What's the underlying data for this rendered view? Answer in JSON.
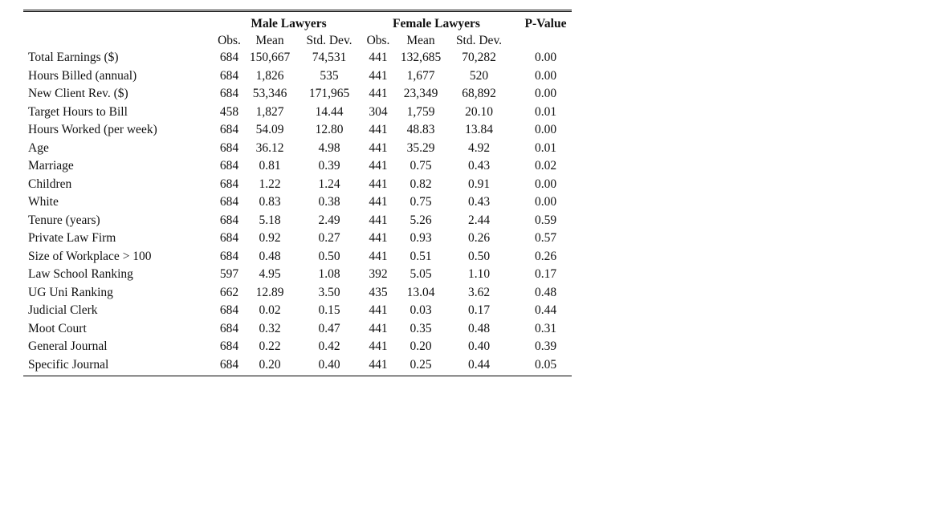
{
  "table": {
    "group_headers": {
      "male": "Male Lawyers",
      "female": "Female Lawyers",
      "pvalue": "P-Value"
    },
    "sub_headers": {
      "obs": "Obs.",
      "mean": "Mean",
      "sd": "Std. Dev."
    },
    "rows": [
      {
        "label": "Total Earnings ($)",
        "m_obs": "684",
        "m_mean": "150,667",
        "m_sd": "74,531",
        "f_obs": "441",
        "f_mean": "132,685",
        "f_sd": "70,282",
        "p": "0.00"
      },
      {
        "label": "Hours Billed (annual)",
        "m_obs": "684",
        "m_mean": "1,826",
        "m_sd": "535",
        "f_obs": "441",
        "f_mean": "1,677",
        "f_sd": "520",
        "p": "0.00"
      },
      {
        "label": "New Client Rev. ($)",
        "m_obs": "684",
        "m_mean": "53,346",
        "m_sd": "171,965",
        "f_obs": "441",
        "f_mean": "23,349",
        "f_sd": "68,892",
        "p": "0.00"
      },
      {
        "label": "Target Hours to Bill",
        "m_obs": "458",
        "m_mean": "1,827",
        "m_sd": "14.44",
        "f_obs": "304",
        "f_mean": "1,759",
        "f_sd": "20.10",
        "p": "0.01"
      },
      {
        "label": "Hours Worked (per week)",
        "m_obs": "684",
        "m_mean": "54.09",
        "m_sd": "12.80",
        "f_obs": "441",
        "f_mean": "48.83",
        "f_sd": "13.84",
        "p": "0.00"
      },
      {
        "label": "Age",
        "m_obs": "684",
        "m_mean": "36.12",
        "m_sd": "4.98",
        "f_obs": "441",
        "f_mean": "35.29",
        "f_sd": "4.92",
        "p": "0.01"
      },
      {
        "label": "Marriage",
        "m_obs": "684",
        "m_mean": "0.81",
        "m_sd": "0.39",
        "f_obs": "441",
        "f_mean": "0.75",
        "f_sd": "0.43",
        "p": "0.02"
      },
      {
        "label": "Children",
        "m_obs": "684",
        "m_mean": "1.22",
        "m_sd": "1.24",
        "f_obs": "441",
        "f_mean": "0.82",
        "f_sd": "0.91",
        "p": "0.00"
      },
      {
        "label": "White",
        "m_obs": "684",
        "m_mean": "0.83",
        "m_sd": "0.38",
        "f_obs": "441",
        "f_mean": "0.75",
        "f_sd": "0.43",
        "p": "0.00"
      },
      {
        "label": "Tenure (years)",
        "m_obs": "684",
        "m_mean": "5.18",
        "m_sd": "2.49",
        "f_obs": "441",
        "f_mean": "5.26",
        "f_sd": "2.44",
        "p": "0.59"
      },
      {
        "label": "Private Law Firm",
        "m_obs": "684",
        "m_mean": "0.92",
        "m_sd": "0.27",
        "f_obs": "441",
        "f_mean": "0.93",
        "f_sd": "0.26",
        "p": "0.57"
      },
      {
        "label": "Size of Workplace > 100",
        "m_obs": "684",
        "m_mean": "0.48",
        "m_sd": "0.50",
        "f_obs": "441",
        "f_mean": "0.51",
        "f_sd": "0.50",
        "p": "0.26"
      },
      {
        "label": "Law School Ranking",
        "m_obs": "597",
        "m_mean": "4.95",
        "m_sd": "1.08",
        "f_obs": "392",
        "f_mean": "5.05",
        "f_sd": "1.10",
        "p": "0.17"
      },
      {
        "label": "UG Uni Ranking",
        "m_obs": "662",
        "m_mean": "12.89",
        "m_sd": "3.50",
        "f_obs": "435",
        "f_mean": "13.04",
        "f_sd": "3.62",
        "p": "0.48"
      },
      {
        "label": "Judicial Clerk",
        "m_obs": "684",
        "m_mean": "0.02",
        "m_sd": "0.15",
        "f_obs": "441",
        "f_mean": "0.03",
        "f_sd": "0.17",
        "p": "0.44"
      },
      {
        "label": "Moot Court",
        "m_obs": "684",
        "m_mean": "0.32",
        "m_sd": "0.47",
        "f_obs": "441",
        "f_mean": "0.35",
        "f_sd": "0.48",
        "p": "0.31"
      },
      {
        "label": "General Journal",
        "m_obs": "684",
        "m_mean": "0.22",
        "m_sd": "0.42",
        "f_obs": "441",
        "f_mean": "0.20",
        "f_sd": "0.40",
        "p": "0.39"
      },
      {
        "label": "Specific Journal",
        "m_obs": "684",
        "m_mean": "0.20",
        "m_sd": "0.40",
        "f_obs": "441",
        "f_mean": "0.25",
        "f_sd": "0.44",
        "p": "0.05"
      }
    ]
  }
}
